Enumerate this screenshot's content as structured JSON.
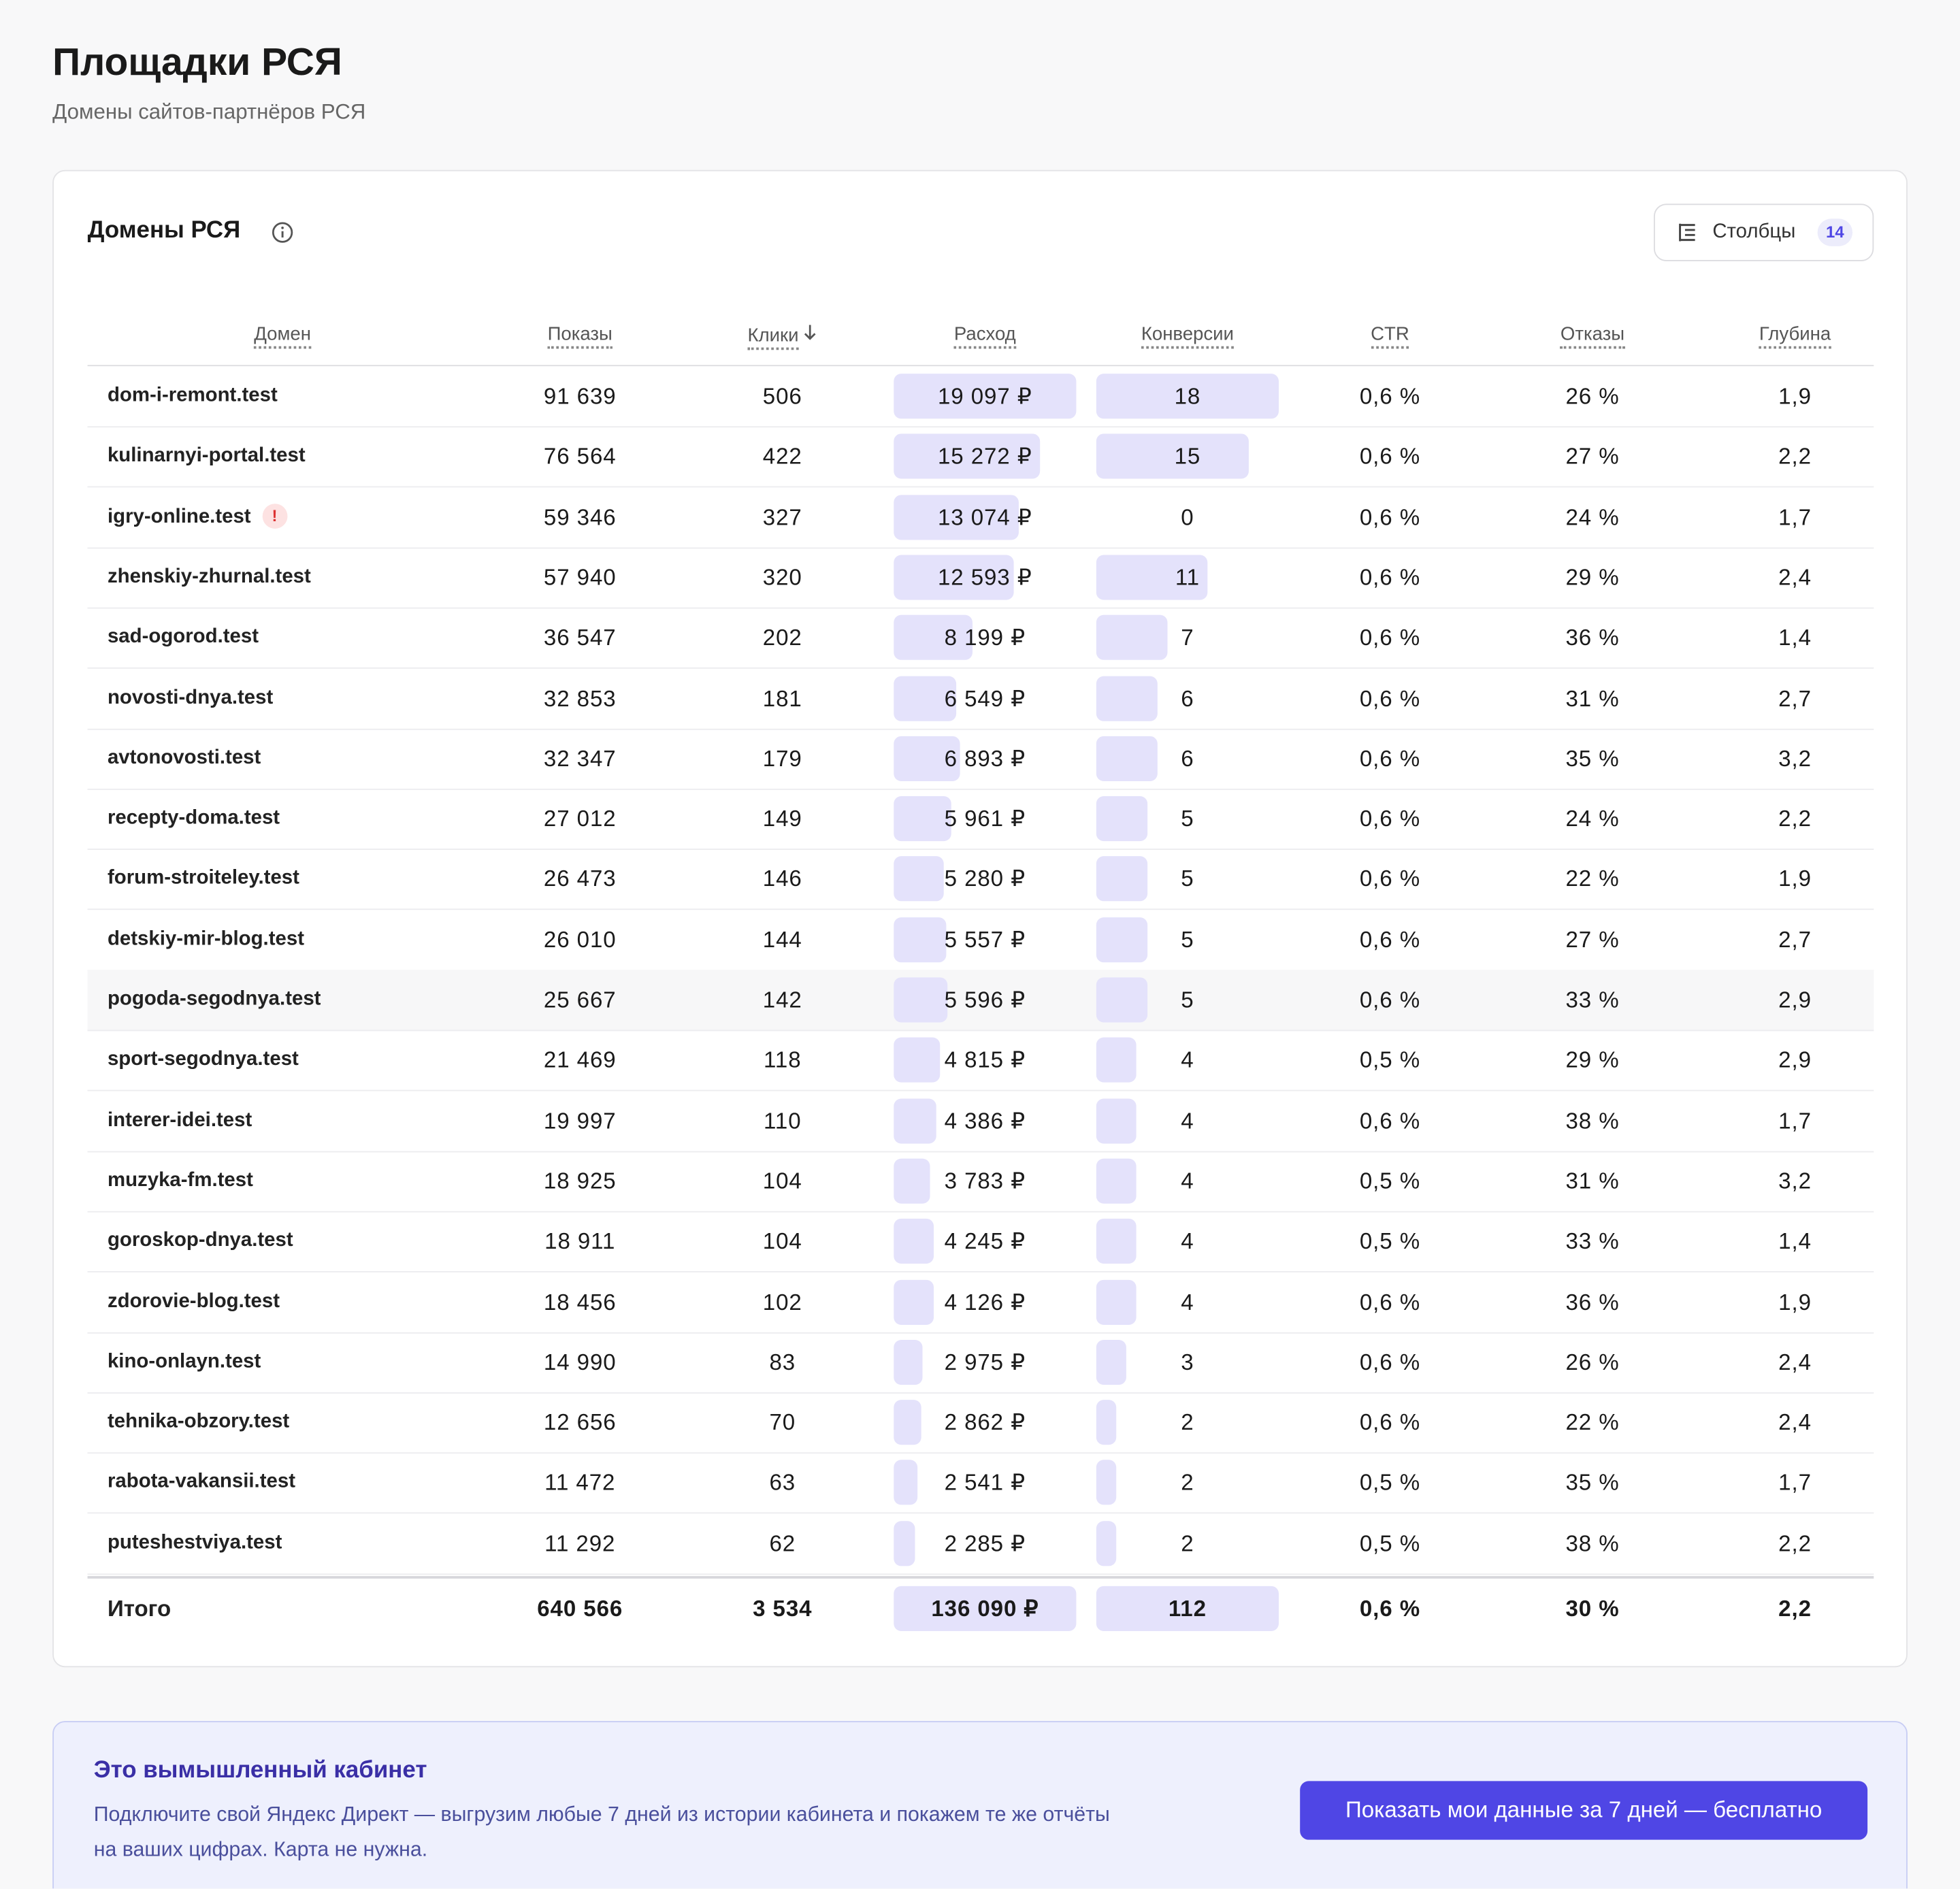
{
  "header": {
    "title": "Площадки РСЯ",
    "subtitle": "Домены сайтов-партнёров РСЯ"
  },
  "card": {
    "title": "Домены РСЯ",
    "columns_button": {
      "label": "Столбцы",
      "count": "14"
    }
  },
  "table": {
    "columns": [
      "Домен",
      "Показы",
      "Клики",
      "Расход",
      "Конверсии",
      "CTR",
      "Отказы",
      "Глубина"
    ],
    "rows": [
      {
        "cells": [
          "dom-i-remont.test",
          "91 639",
          "506",
          "19 097 ₽",
          "18",
          "0,6 %",
          "26 %",
          "1,9"
        ]
      },
      {
        "cells": [
          "kulinarnyi-portal.test",
          "76 564",
          "422",
          "15 272 ₽",
          "15",
          "0,6 %",
          "27 %",
          "2,2"
        ]
      },
      {
        "cells": [
          "igry-online.test",
          "59 346",
          "327",
          "13 074 ₽",
          "0",
          "0,6 %",
          "24 %",
          "1,7"
        ],
        "badge": "!"
      },
      {
        "cells": [
          "zhenskiy-zhurnal.test",
          "57 940",
          "320",
          "12 593 ₽",
          "11",
          "0,6 %",
          "29 %",
          "2,4"
        ]
      },
      {
        "cells": [
          "sad-ogorod.test",
          "36 547",
          "202",
          "8 199 ₽",
          "7",
          "0,6 %",
          "36 %",
          "1,4"
        ]
      },
      {
        "cells": [
          "novosti-dnya.test",
          "32 853",
          "181",
          "6 549 ₽",
          "6",
          "0,6 %",
          "31 %",
          "2,7"
        ]
      },
      {
        "cells": [
          "avtonovosti.test",
          "32 347",
          "179",
          "6 893 ₽",
          "6",
          "0,6 %",
          "35 %",
          "3,2"
        ]
      },
      {
        "cells": [
          "recepty-doma.test",
          "27 012",
          "149",
          "5 961 ₽",
          "5",
          "0,6 %",
          "24 %",
          "2,2"
        ]
      },
      {
        "cells": [
          "forum-stroiteley.test",
          "26 473",
          "146",
          "5 280 ₽",
          "5",
          "0,6 %",
          "22 %",
          "1,9"
        ]
      },
      {
        "cells": [
          "detskiy-mir-blog.test",
          "26 010",
          "144",
          "5 557 ₽",
          "5",
          "0,6 %",
          "27 %",
          "2,7"
        ]
      },
      {
        "cells": [
          "pogoda-segodnya.test",
          "25 667",
          "142",
          "5 596 ₽",
          "5",
          "0,6 %",
          "33 %",
          "2,9"
        ]
      },
      {
        "cells": [
          "sport-segodnya.test",
          "21 469",
          "118",
          "4 815 ₽",
          "4",
          "0,5 %",
          "29 %",
          "2,9"
        ]
      },
      {
        "cells": [
          "interer-idei.test",
          "19 997",
          "110",
          "4 386 ₽",
          "4",
          "0,6 %",
          "38 %",
          "1,7"
        ]
      },
      {
        "cells": [
          "muzyka-fm.test",
          "18 925",
          "104",
          "3 783 ₽",
          "4",
          "0,5 %",
          "31 %",
          "3,2"
        ]
      },
      {
        "cells": [
          "goroskop-dnya.test",
          "18 911",
          "104",
          "4 245 ₽",
          "4",
          "0,5 %",
          "33 %",
          "1,4"
        ]
      },
      {
        "cells": [
          "zdorovie-blog.test",
          "18 456",
          "102",
          "4 126 ₽",
          "4",
          "0,6 %",
          "36 %",
          "1,9"
        ]
      },
      {
        "cells": [
          "kino-onlayn.test",
          "14 990",
          "83",
          "2 975 ₽",
          "3",
          "0,6 %",
          "26 %",
          "2,4"
        ]
      },
      {
        "cells": [
          "tehnika-obzory.test",
          "12 656",
          "70",
          "2 862 ₽",
          "2",
          "0,6 %",
          "22 %",
          "2,4"
        ]
      },
      {
        "cells": [
          "rabota-vakansii.test",
          "11 472",
          "63",
          "2 541 ₽",
          "2",
          "0,5 %",
          "35 %",
          "1,7"
        ]
      },
      {
        "cells": [
          "puteshestviya.test",
          "11 292",
          "62",
          "2 285 ₽",
          "2",
          "0,5 %",
          "38 %",
          "2,2"
        ]
      }
    ],
    "total": [
      "Итого",
      "640 566",
      "3 534",
      "136 090 ₽",
      "112",
      "0,6 %",
      "30 %",
      "2,2"
    ]
  },
  "banner": {
    "title": "Это вымышленный кабинет",
    "text": "Подключите свой Яндекс Директ — выгрузим любые 7 дней из истории кабинета и покажем те же отчёты на ваших цифрах. Карта не нужна.",
    "button": "Показать мои данные за 7 дней — бесплатно"
  }
}
